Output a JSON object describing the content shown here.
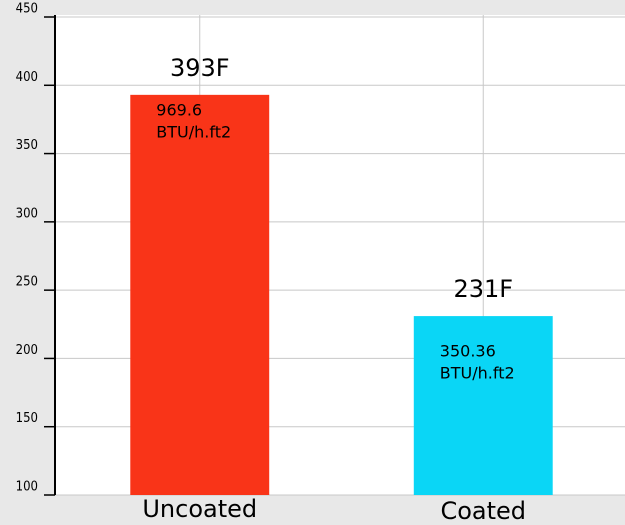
{
  "chart_data": {
    "type": "bar",
    "categories": [
      "Uncoated",
      "Coated"
    ],
    "values": [
      393,
      231
    ],
    "value_labels": [
      "393F",
      "231F"
    ],
    "notes": [
      [
        "969.6",
        "BTU/h.ft2"
      ],
      [
        "350.36",
        "BTU/h.ft2"
      ]
    ],
    "colors": [
      "#f93418",
      "#0ad6f6"
    ],
    "ylim": [
      100,
      450
    ],
    "yticks": [
      100,
      150,
      200,
      250,
      300,
      350,
      400,
      450
    ],
    "grid": true
  }
}
